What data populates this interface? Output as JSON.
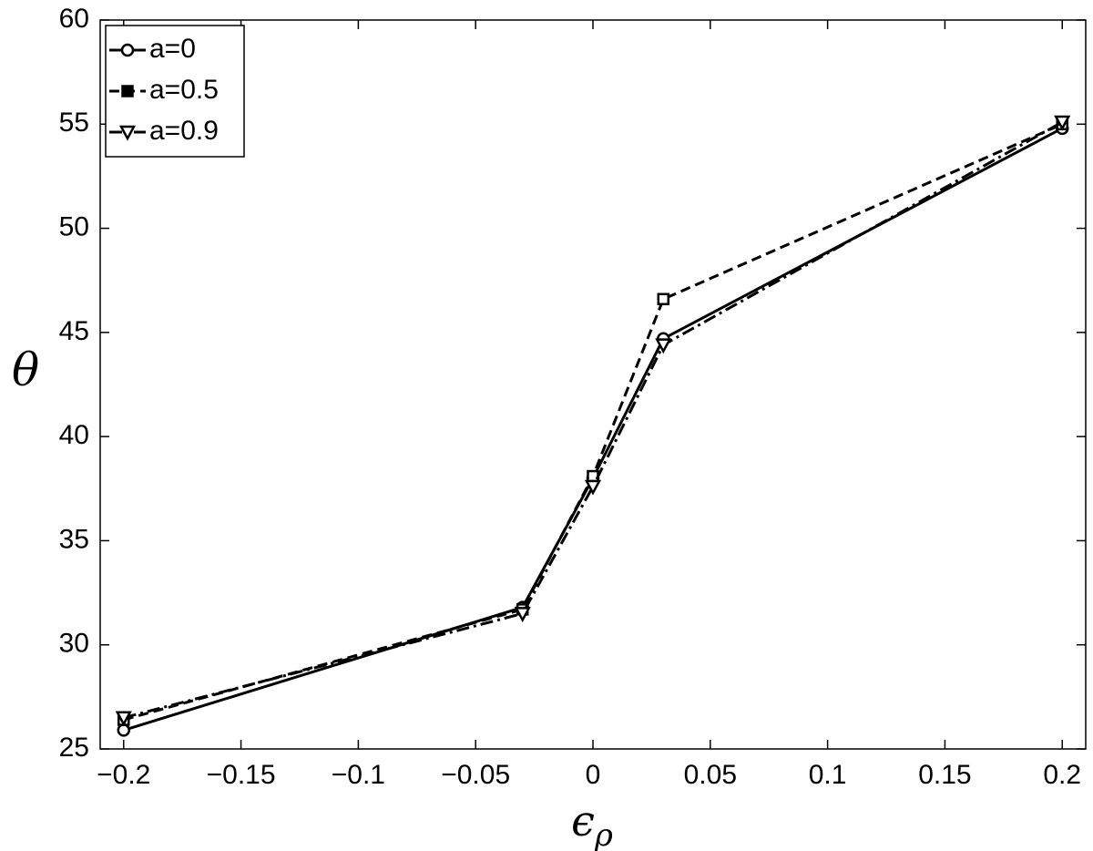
{
  "chart_data": {
    "type": "line",
    "xlabel": {
      "symbol": "ϵ",
      "subscript": "ρ"
    },
    "ylabel": "θ",
    "x": [
      -0.2,
      -0.03,
      0,
      0.03,
      0.2
    ],
    "series": [
      {
        "name": "a=0",
        "color": "#000000",
        "linestyle": "solid",
        "marker": "circle",
        "values": [
          25.9,
          31.8,
          38.0,
          44.7,
          54.8
        ]
      },
      {
        "name": "a=0.5",
        "color": "#000000",
        "linestyle": "dashed",
        "marker": "square",
        "values": [
          26.4,
          31.7,
          38.1,
          46.6,
          55.0
        ]
      },
      {
        "name": "a=0.9",
        "color": "#000000",
        "linestyle": "dashdot",
        "marker": "triangle-down",
        "values": [
          26.5,
          31.5,
          37.6,
          44.4,
          55.1
        ]
      }
    ],
    "xlim": [
      -0.21,
      0.21
    ],
    "ylim": [
      25,
      60
    ],
    "xticks": [
      {
        "value": -0.2,
        "label": "−0.2"
      },
      {
        "value": -0.15,
        "label": "−0.15"
      },
      {
        "value": -0.1,
        "label": "−0.1"
      },
      {
        "value": -0.05,
        "label": "−0.05"
      },
      0,
      0.05,
      0.1,
      0.15,
      0.2
    ],
    "yticks": [
      25,
      30,
      35,
      40,
      45,
      50,
      55,
      60
    ],
    "grid": false,
    "legend": "top-left"
  }
}
